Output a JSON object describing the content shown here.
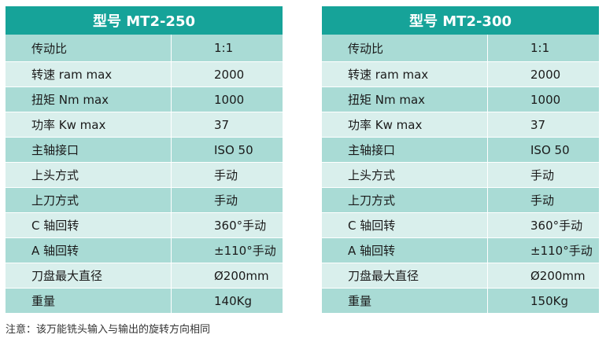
{
  "tables": [
    {
      "title": "型号 MT2-250",
      "rows": [
        {
          "label": "传动比",
          "value": "1:1"
        },
        {
          "label": "转速 ram max",
          "value": "2000"
        },
        {
          "label": "扭矩 Nm max",
          "value": "1000"
        },
        {
          "label": "功率 Kw max",
          "value": "37"
        },
        {
          "label": "主轴接口",
          "value": "ISO 50"
        },
        {
          "label": "上头方式",
          "value": "手动"
        },
        {
          "label": "上刀方式",
          "value": "手动"
        },
        {
          "label": "C 轴回转",
          "value": "360°手动"
        },
        {
          "label": "A 轴回转",
          "value": "±110°手动"
        },
        {
          "label": "刀盘最大直径",
          "value": "Ø200mm"
        },
        {
          "label": "重量",
          "value": "140Kg"
        }
      ]
    },
    {
      "title": "型号 MT2-300",
      "rows": [
        {
          "label": "传动比",
          "value": "1:1"
        },
        {
          "label": "转速 ram max",
          "value": "2000"
        },
        {
          "label": "扭矩 Nm max",
          "value": "1000"
        },
        {
          "label": "功率 Kw max",
          "value": "37"
        },
        {
          "label": "主轴接口",
          "value": "ISO 50"
        },
        {
          "label": "上头方式",
          "value": "手动"
        },
        {
          "label": "上刀方式",
          "value": "手动"
        },
        {
          "label": "C 轴回转",
          "value": "360°手动"
        },
        {
          "label": "A 轴回转",
          "value": "±110°手动"
        },
        {
          "label": "刀盘最大直径",
          "value": "Ø200mm"
        },
        {
          "label": "重量",
          "value": "150Kg"
        }
      ]
    }
  ],
  "note": "注意：该万能铣头输入与输出的旋转方向相同",
  "colors": {
    "header": "#16a399",
    "row_dark": "#a9dbd5",
    "row_light": "#d9efec"
  }
}
